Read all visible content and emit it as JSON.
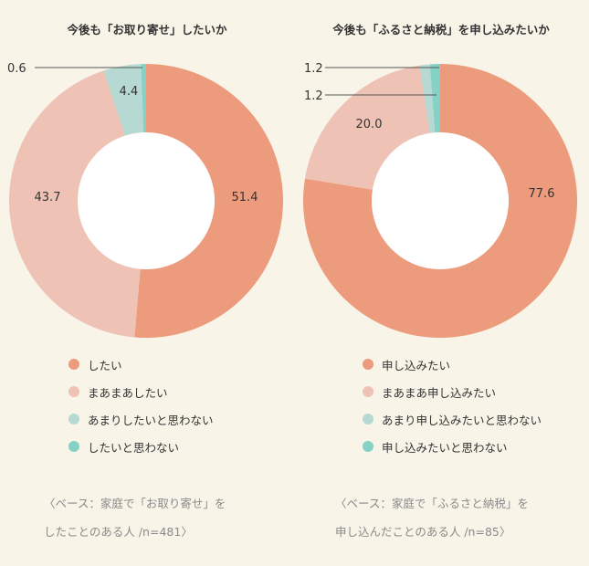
{
  "colors": {
    "shitai": "#ec9b7d",
    "maamaa": "#eec2b4",
    "amari": "#b6d9d4",
    "omowanai": "#86d1c5"
  },
  "chart_data": [
    {
      "type": "pie",
      "donut": true,
      "title": "今後も「お取り寄せ」したいか",
      "categories": [
        "したい",
        "まあまあしたい",
        "あまりしたいと思わない",
        "したいと思わない"
      ],
      "values": [
        51.4,
        43.7,
        4.4,
        0.6
      ],
      "data_labels": [
        "51.4",
        "43.7",
        "4.4",
        "0.6"
      ],
      "legend": [
        "したい",
        "まあまあしたい",
        "あまりしたいと思わない",
        "したいと思わない"
      ],
      "legend_position": "bottom",
      "note_line1": "〈ベース：家庭で「お取り寄せ」を",
      "note_line2": "したことのある人 /n=481〉"
    },
    {
      "type": "pie",
      "donut": true,
      "title": "今後も「ふるさと納税」を申し込みたいか",
      "categories": [
        "申し込みたい",
        "まあまあ申し込みたい",
        "あまり申し込みたいと思わない",
        "申し込みたいと思わない"
      ],
      "values": [
        77.6,
        20.0,
        1.2,
        1.2
      ],
      "data_labels": [
        "77.6",
        "20.0",
        "1.2",
        "1.2"
      ],
      "legend": [
        "申し込みたい",
        "まあまあ申し込みたい",
        "あまり申し込みたいと思わない",
        "申し込みたいと思わない"
      ],
      "legend_position": "bottom",
      "note_line1": "〈ベース：家庭で「ふるさと納税」を",
      "note_line2": "申し込んだことのある人 /n=85〉"
    }
  ]
}
